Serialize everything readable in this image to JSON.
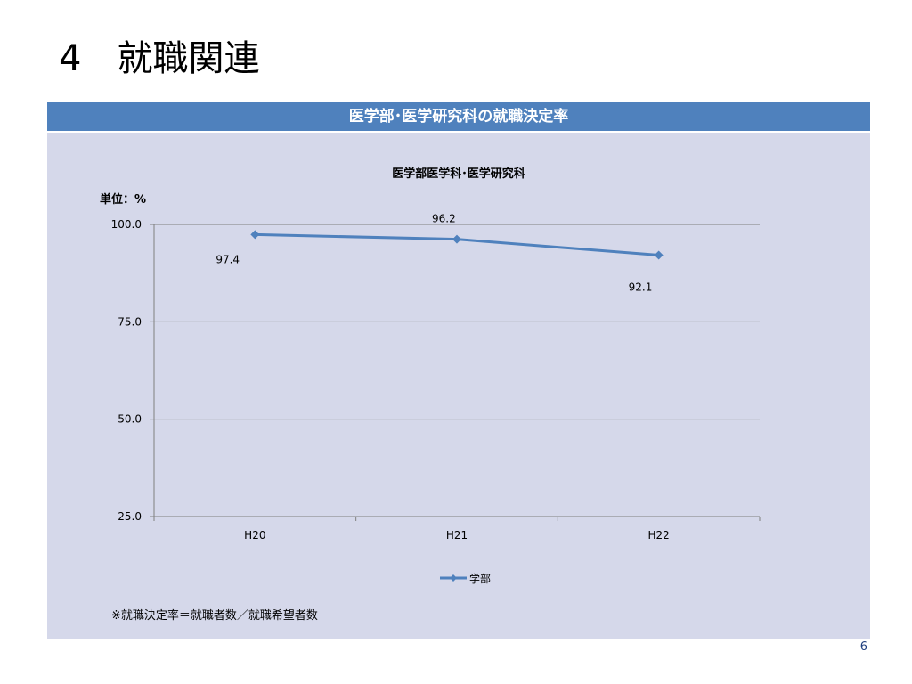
{
  "slide": {
    "title": "4　就職関連",
    "page_number": "6"
  },
  "header": {
    "title": "医学部･医学研究科の就職決定率"
  },
  "colors": {
    "header_bar": "#4f81bd",
    "panel_background": "#d5d8ea",
    "series_line": "#4f81bd"
  },
  "chart_data": {
    "type": "line",
    "title": "医学部医学科･医学研究科",
    "unit_label": "単位：%",
    "categories": [
      "H20",
      "H21",
      "H22"
    ],
    "series": [
      {
        "name": "学部",
        "values": [
          97.4,
          96.2,
          92.1
        ],
        "color": "#4f81bd",
        "marker": "diamond"
      }
    ],
    "data_labels": [
      "97.4",
      "96.2",
      "92.1"
    ],
    "ylim": [
      25.0,
      100.0
    ],
    "yticks": [
      "100.0",
      "75.0",
      "50.0",
      "25.0"
    ],
    "ytick_values": [
      100,
      75,
      50,
      25
    ],
    "grid": true,
    "legend_position": "bottom",
    "footnote": "※就職決定率＝就職者数／就職希望者数"
  }
}
